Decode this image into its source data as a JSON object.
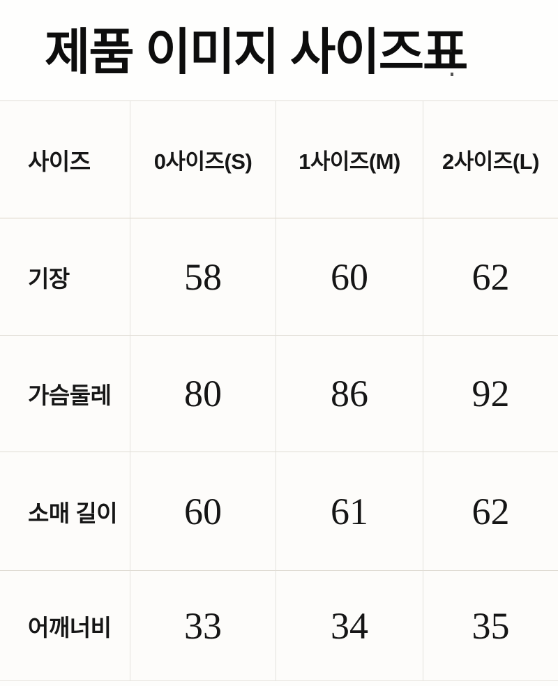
{
  "title": "제품 이미지 사이즈표",
  "table": {
    "headers": [
      "사이즈",
      "0사이즈(S)",
      "1사이즈(M)",
      "2사이즈(L)"
    ],
    "rows": [
      {
        "label": "기장",
        "values": [
          "58",
          "60",
          "62"
        ]
      },
      {
        "label": "가슴둘레",
        "values": [
          "80",
          "86",
          "92"
        ]
      },
      {
        "label": "소매 길이",
        "values": [
          "60",
          "61",
          "62"
        ]
      },
      {
        "label": "어깨너비",
        "values": [
          "33",
          "34",
          "35"
        ]
      }
    ]
  },
  "colors": {
    "background": "#fdfdfc",
    "text": "#141414",
    "grid_line": "#e0dcd4",
    "header_underline": "#d9d2c2"
  }
}
